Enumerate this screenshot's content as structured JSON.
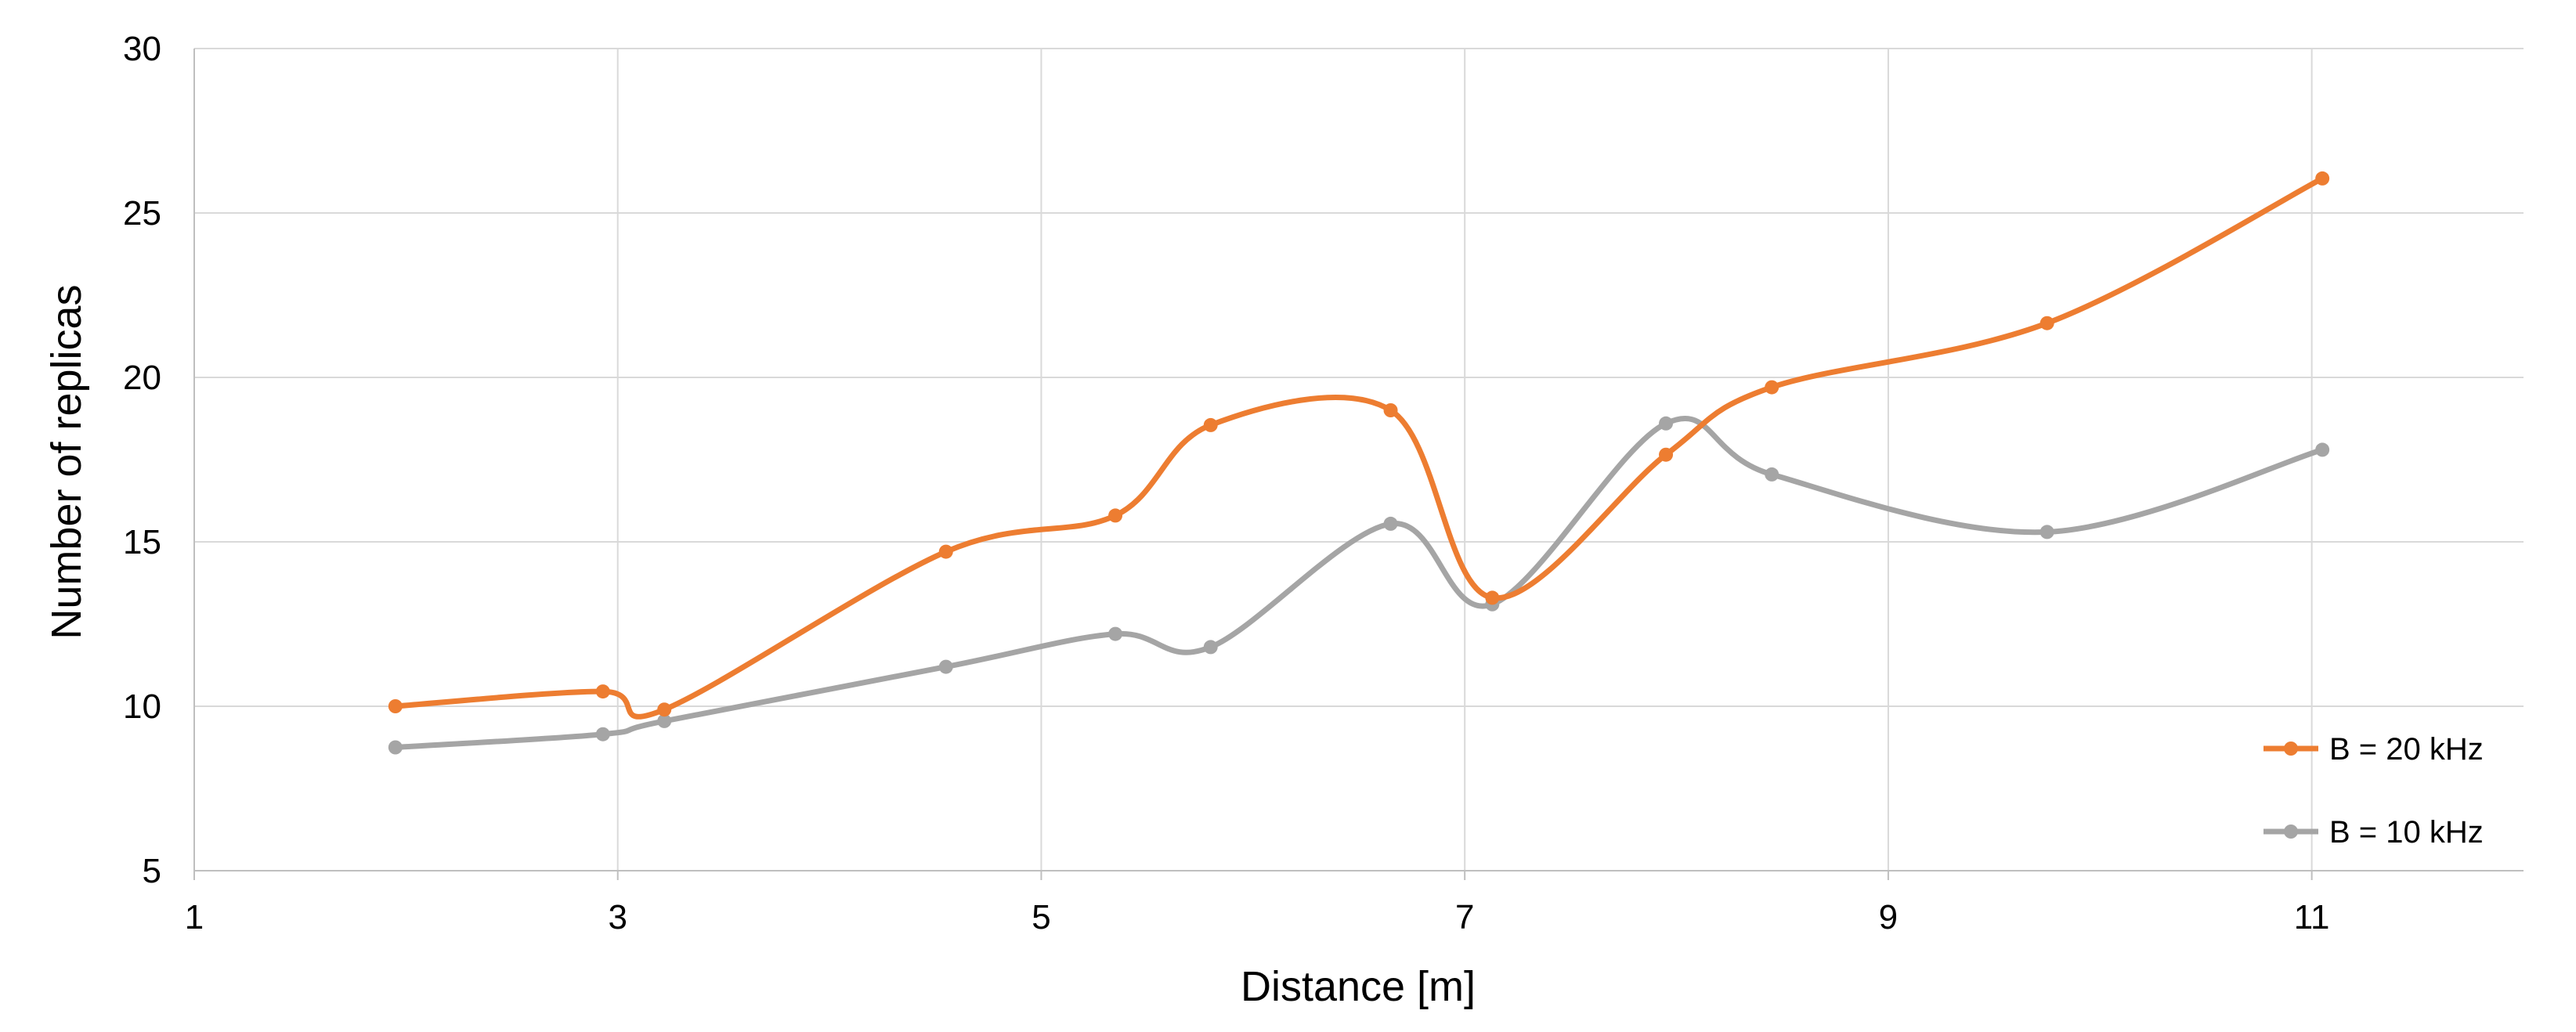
{
  "chart_data": {
    "type": "line",
    "title": "",
    "xlabel": "Distance [m]",
    "ylabel": "Number of replicas",
    "xlim": [
      1,
      12
    ],
    "ylim": [
      5,
      30
    ],
    "xticks": [
      1,
      3,
      5,
      7,
      9,
      11
    ],
    "yticks": [
      5,
      10,
      15,
      20,
      25,
      30
    ],
    "grid": true,
    "smooth": true,
    "legend_position": "bottom-right",
    "series": [
      {
        "name": "B = 20 kHz",
        "color": "#ED7D31",
        "x": [
          1.95,
          2.93,
          3.22,
          4.55,
          5.35,
          5.8,
          6.65,
          7.13,
          7.95,
          8.45,
          9.75,
          11.05
        ],
        "y": [
          10.0,
          10.45,
          9.9,
          14.7,
          15.8,
          18.55,
          19.0,
          13.3,
          17.65,
          19.7,
          21.65,
          26.05
        ]
      },
      {
        "name": "B = 10 kHz",
        "color": "#A5A5A5",
        "x": [
          1.95,
          2.93,
          3.22,
          4.55,
          5.35,
          5.8,
          6.65,
          7.13,
          7.95,
          8.45,
          9.75,
          11.05
        ],
        "y": [
          8.75,
          9.15,
          9.55,
          11.2,
          12.2,
          11.8,
          15.55,
          13.1,
          18.6,
          17.05,
          15.3,
          17.8
        ]
      }
    ]
  }
}
